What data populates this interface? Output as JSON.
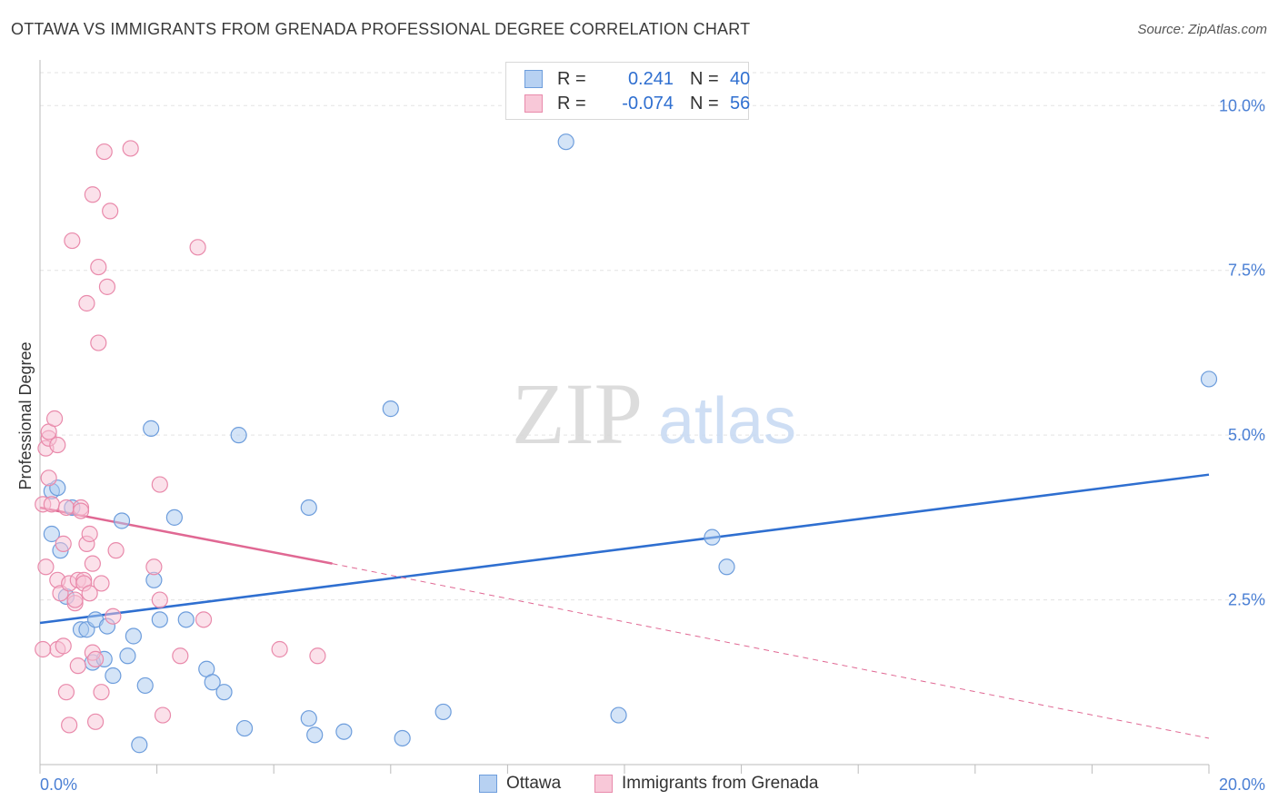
{
  "title": "OTTAWA VS IMMIGRANTS FROM GRENADA PROFESSIONAL DEGREE CORRELATION CHART",
  "source": "Source: ZipAtlas.com",
  "watermark": {
    "zip": "ZIP",
    "atlas": "atlas"
  },
  "legend": {
    "rows": [
      {
        "r_label": "R =",
        "r_value": "0.241",
        "n_label": "N =",
        "n_value": "40",
        "color": "#9ec2ee",
        "border": "#6d9ddc"
      },
      {
        "r_label": "R =",
        "r_value": "-0.074",
        "n_label": "N =",
        "n_value": "56",
        "color": "#f6bcd0",
        "border": "#e98aab"
      }
    ]
  },
  "bottom_legend": [
    "Ottawa",
    "Immigrants from Grenada"
  ],
  "chart_data": {
    "type": "scatter",
    "title": "OTTAWA VS IMMIGRANTS FROM GRENADA PROFESSIONAL DEGREE CORRELATION CHART",
    "xlabel": "",
    "ylabel": "Professional Degree",
    "xlim": [
      0,
      20
    ],
    "ylim": [
      0,
      10.5
    ],
    "x_tick_labels": [
      "0.0%",
      "20.0%"
    ],
    "y_ticks": [
      2.5,
      5.0,
      7.5,
      10.0
    ],
    "y_tick_labels": [
      "2.5%",
      "5.0%",
      "7.5%",
      "10.0%"
    ],
    "grid": true,
    "series": [
      {
        "name": "Ottawa",
        "color": "#6d9ddc",
        "fill": "#aac9f0",
        "points": [
          [
            0.2,
            4.15
          ],
          [
            0.3,
            4.2
          ],
          [
            0.2,
            3.5
          ],
          [
            0.35,
            3.25
          ],
          [
            0.55,
            3.9
          ],
          [
            0.45,
            2.55
          ],
          [
            0.7,
            2.05
          ],
          [
            0.8,
            2.05
          ],
          [
            0.95,
            2.2
          ],
          [
            1.15,
            2.1
          ],
          [
            0.9,
            1.55
          ],
          [
            1.1,
            1.6
          ],
          [
            1.25,
            1.35
          ],
          [
            1.4,
            3.7
          ],
          [
            1.5,
            1.65
          ],
          [
            1.6,
            1.95
          ],
          [
            1.8,
            1.2
          ],
          [
            1.7,
            0.3
          ],
          [
            1.9,
            5.1
          ],
          [
            1.95,
            2.8
          ],
          [
            2.05,
            2.2
          ],
          [
            2.3,
            3.75
          ],
          [
            2.5,
            2.2
          ],
          [
            2.85,
            1.45
          ],
          [
            2.95,
            1.25
          ],
          [
            3.15,
            1.1
          ],
          [
            3.4,
            5.0
          ],
          [
            3.5,
            0.55
          ],
          [
            4.6,
            3.9
          ],
          [
            4.6,
            0.7
          ],
          [
            4.7,
            0.45
          ],
          [
            5.2,
            0.5
          ],
          [
            6.0,
            5.4
          ],
          [
            6.2,
            0.4
          ],
          [
            6.9,
            0.8
          ],
          [
            9.0,
            9.45
          ],
          [
            9.9,
            0.75
          ],
          [
            11.5,
            3.45
          ],
          [
            11.75,
            3.0
          ],
          [
            20.0,
            5.85
          ]
        ]
      },
      {
        "name": "Immigrants from Grenada",
        "color": "#e98aab",
        "fill": "#f7c4d6",
        "points": [
          [
            0.05,
            3.95
          ],
          [
            0.1,
            4.8
          ],
          [
            0.1,
            3.0
          ],
          [
            0.15,
            4.95
          ],
          [
            0.15,
            5.05
          ],
          [
            0.15,
            4.35
          ],
          [
            0.2,
            3.95
          ],
          [
            0.25,
            5.25
          ],
          [
            0.3,
            4.85
          ],
          [
            0.3,
            2.8
          ],
          [
            0.3,
            1.75
          ],
          [
            0.35,
            2.6
          ],
          [
            0.4,
            3.35
          ],
          [
            0.4,
            1.8
          ],
          [
            0.45,
            3.9
          ],
          [
            0.45,
            1.1
          ],
          [
            0.5,
            2.75
          ],
          [
            0.5,
            0.6
          ],
          [
            0.55,
            7.95
          ],
          [
            0.6,
            2.45
          ],
          [
            0.6,
            2.5
          ],
          [
            0.65,
            2.8
          ],
          [
            0.65,
            1.5
          ],
          [
            0.7,
            3.9
          ],
          [
            0.7,
            3.85
          ],
          [
            0.75,
            2.8
          ],
          [
            0.75,
            2.75
          ],
          [
            0.8,
            7.0
          ],
          [
            0.8,
            3.35
          ],
          [
            0.85,
            2.6
          ],
          [
            0.85,
            3.5
          ],
          [
            0.9,
            1.7
          ],
          [
            0.9,
            3.05
          ],
          [
            0.9,
            8.65
          ],
          [
            0.95,
            0.65
          ],
          [
            0.95,
            1.6
          ],
          [
            1.0,
            7.55
          ],
          [
            1.0,
            6.4
          ],
          [
            1.05,
            2.75
          ],
          [
            1.05,
            1.1
          ],
          [
            1.1,
            9.3
          ],
          [
            1.15,
            7.25
          ],
          [
            1.2,
            8.4
          ],
          [
            1.25,
            2.25
          ],
          [
            1.3,
            3.25
          ],
          [
            1.55,
            9.35
          ],
          [
            1.95,
            3.0
          ],
          [
            2.05,
            2.5
          ],
          [
            2.05,
            4.25
          ],
          [
            2.1,
            0.75
          ],
          [
            2.4,
            1.65
          ],
          [
            2.7,
            7.85
          ],
          [
            2.8,
            2.2
          ],
          [
            4.1,
            1.75
          ],
          [
            4.75,
            1.65
          ],
          [
            0.05,
            1.75
          ]
        ]
      }
    ],
    "trendlines": [
      {
        "series": "Ottawa",
        "x": [
          0,
          20
        ],
        "y": [
          2.15,
          4.4
        ],
        "style": "solid"
      },
      {
        "series": "Immigrants from Grenada",
        "x": [
          0,
          5
        ],
        "y": [
          3.9,
          3.05
        ],
        "style": "solid"
      },
      {
        "series": "Immigrants from Grenada",
        "x": [
          5,
          20
        ],
        "y": [
          3.05,
          0.4
        ],
        "style": "dashed"
      }
    ]
  }
}
